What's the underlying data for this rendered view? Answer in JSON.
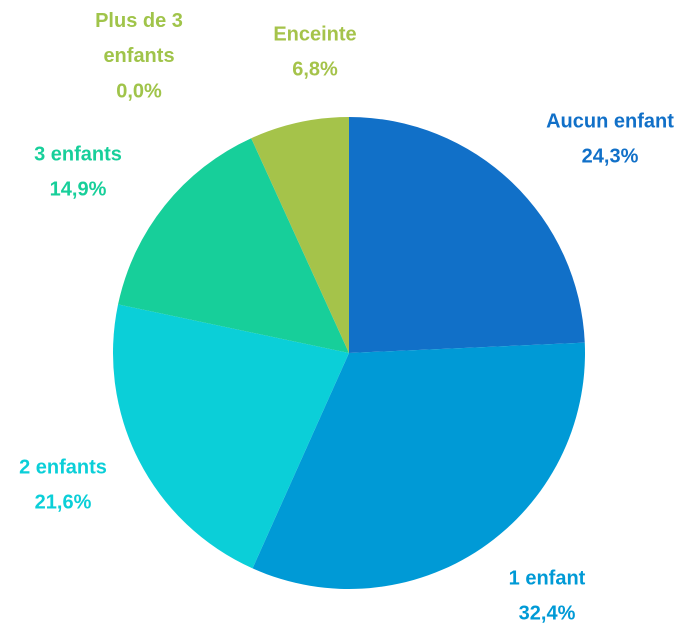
{
  "chart_data": {
    "type": "pie",
    "categories": [
      "Aucun enfant",
      "1 enfant",
      "2 enfants",
      "3 enfants",
      "Plus de 3 enfants",
      "Enceinte"
    ],
    "values": [
      24.3,
      32.4,
      21.6,
      14.9,
      0.0,
      6.8
    ],
    "value_labels": [
      "24,3%",
      "32,4%",
      "21,6%",
      "14,9%",
      "0,0%",
      "6,8%"
    ],
    "colors": [
      "#1170c8",
      "#009ad6",
      "#0bcfd8",
      "#17cf9a",
      "#a0c44a",
      "#a5c34a"
    ]
  }
}
